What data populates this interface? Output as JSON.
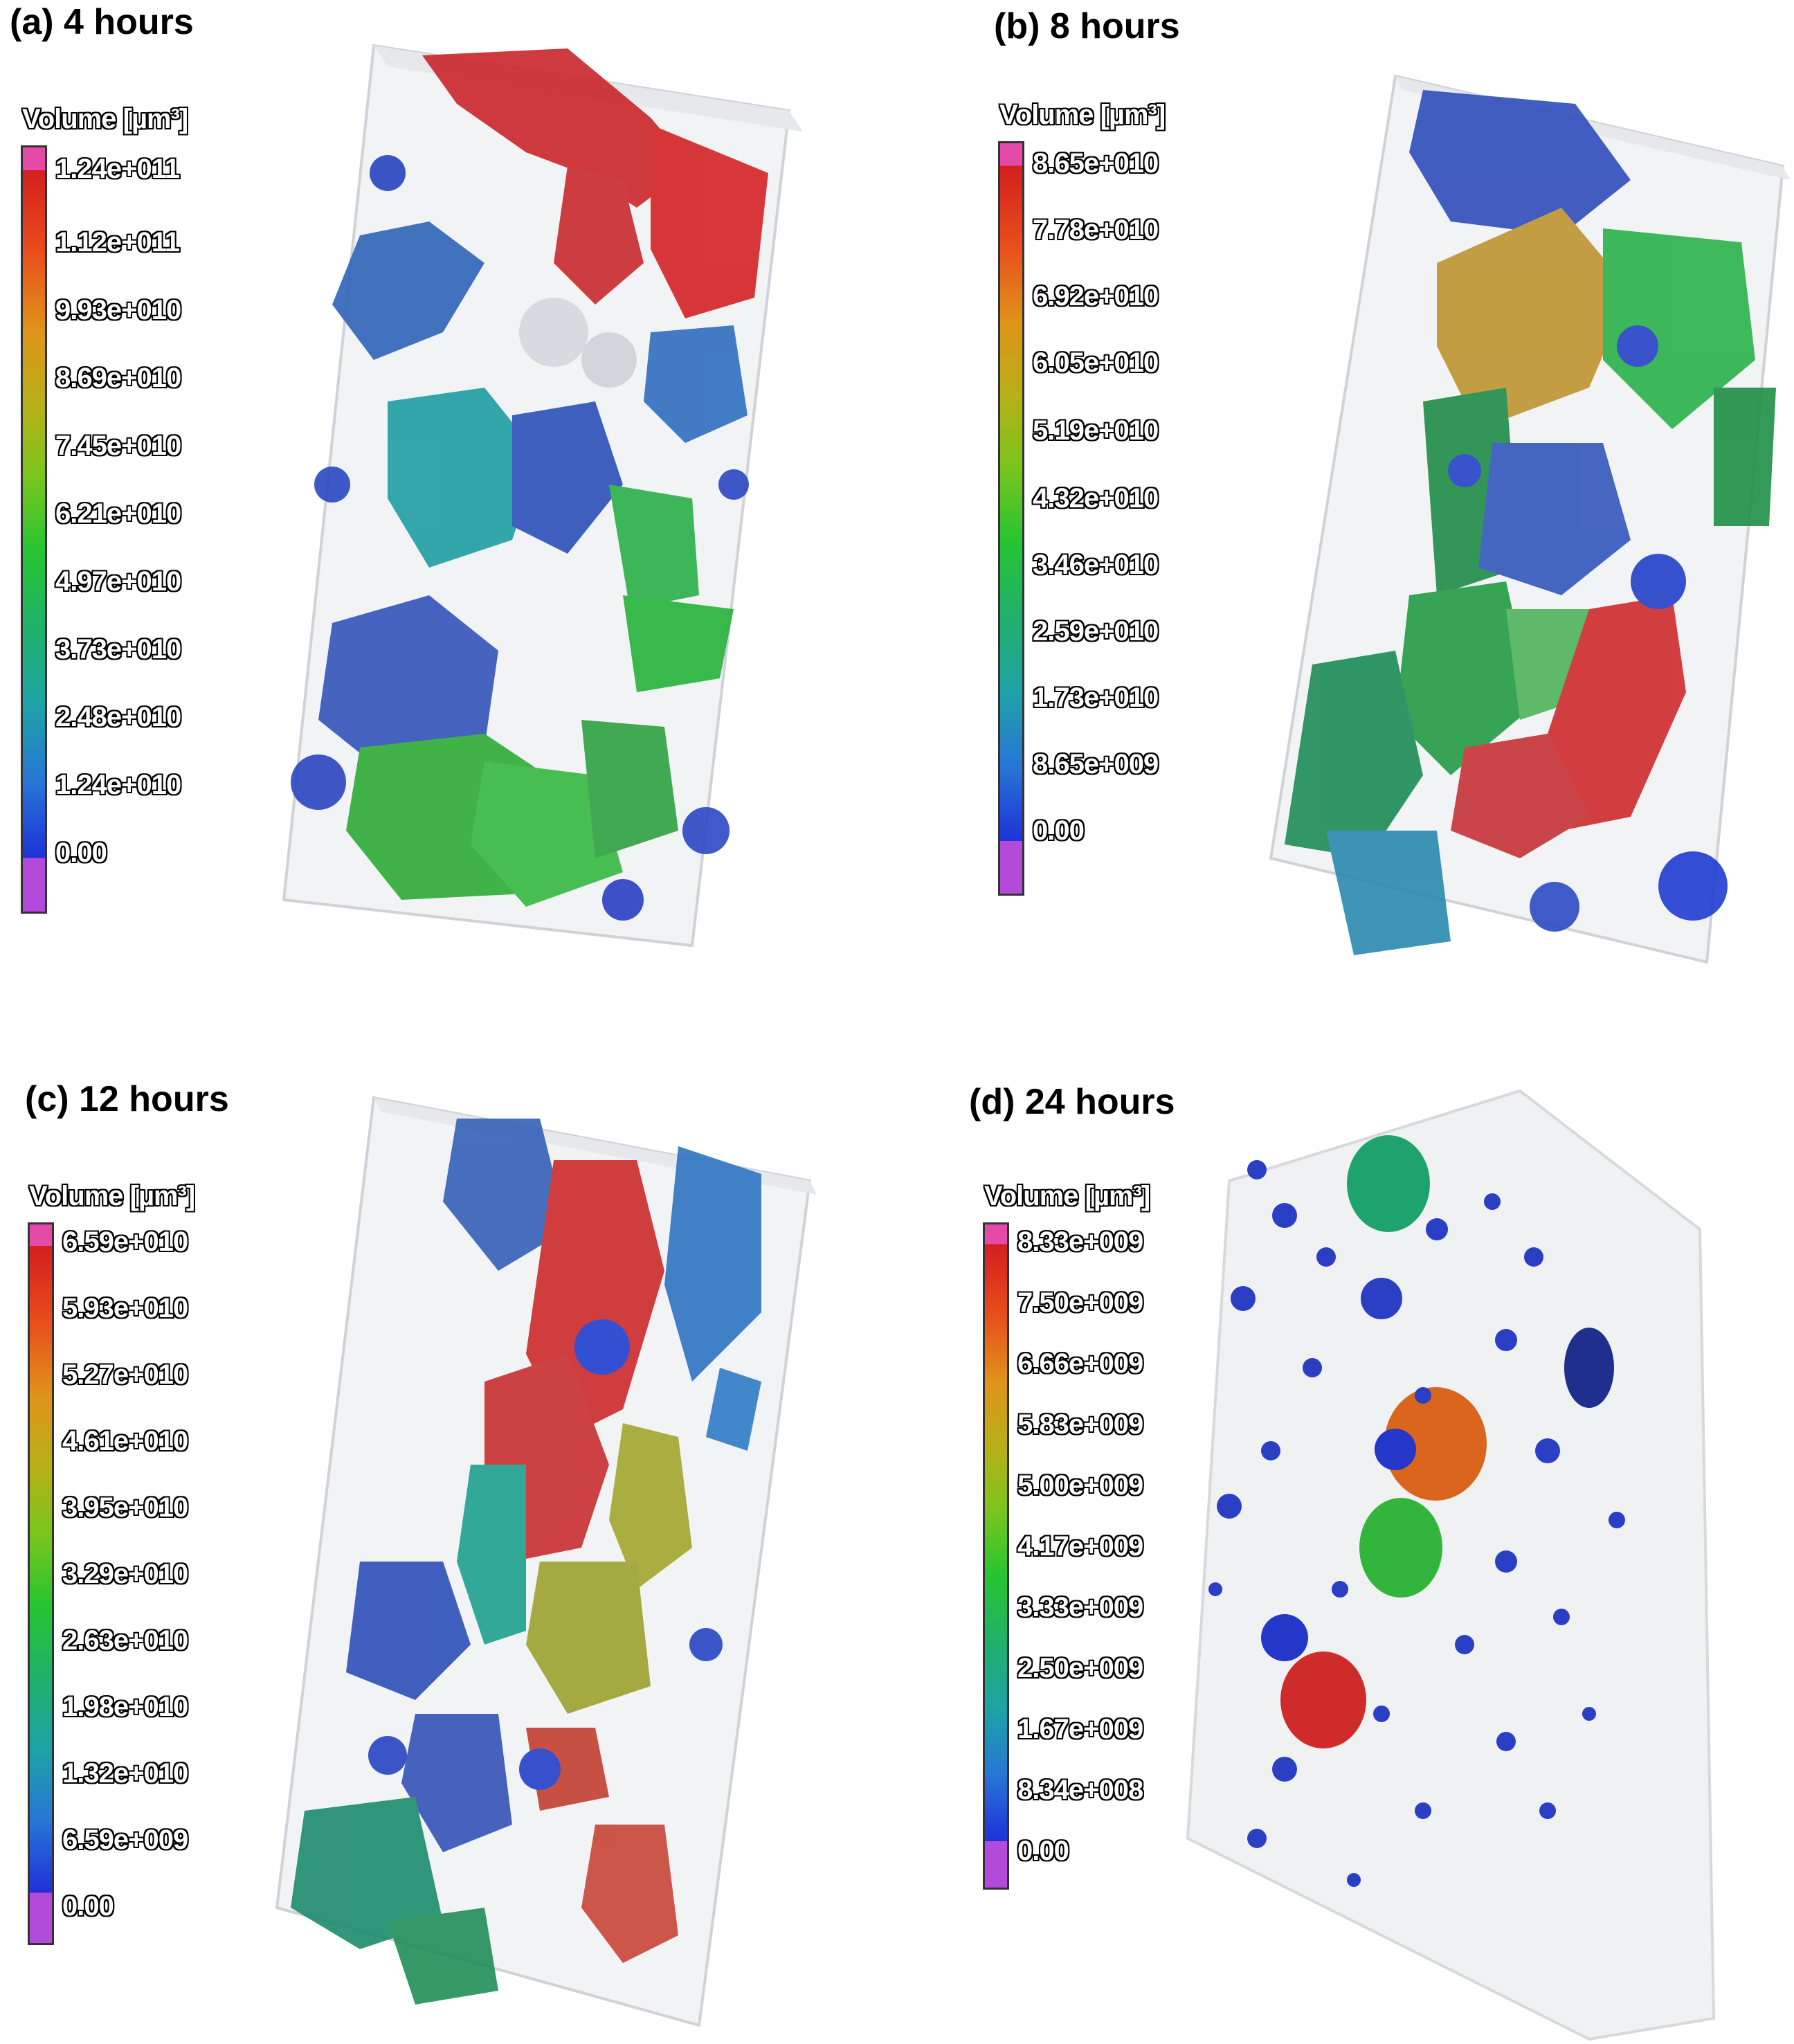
{
  "panels": [
    {
      "id": "a",
      "caption": "(a) 4 hours",
      "legend_title": "Volume [µm³]",
      "ticks": [
        "1.24e+011",
        "1.12e+011",
        "9.93e+010",
        "8.69e+010",
        "7.45e+010",
        "6.21e+010",
        "4.97e+010",
        "3.73e+010",
        "2.48e+010",
        "1.24e+010",
        "0.00"
      ]
    },
    {
      "id": "b",
      "caption": "(b) 8 hours",
      "legend_title": "Volume [µm³]",
      "ticks": [
        "8.65e+010",
        "7.78e+010",
        "6.92e+010",
        "6.05e+010",
        "5.19e+010",
        "4.32e+010",
        "3.46e+010",
        "2.59e+010",
        "1.73e+010",
        "8.65e+009",
        "0.00"
      ]
    },
    {
      "id": "c",
      "caption": "(c) 12 hours",
      "legend_title": "Volume [µm³]",
      "ticks": [
        "6.59e+010",
        "5.93e+010",
        "5.27e+010",
        "4.61e+010",
        "3.95e+010",
        "3.29e+010",
        "2.63e+010",
        "1.98e+010",
        "1.32e+010",
        "6.59e+009",
        "0.00"
      ]
    },
    {
      "id": "d",
      "caption": "(d) 24 hours",
      "legend_title": "Volume [µm³]",
      "ticks": [
        "8.33e+009",
        "7.50e+009",
        "6.66e+009",
        "5.83e+009",
        "5.00e+009",
        "4.17e+009",
        "3.33e+009",
        "2.50e+009",
        "1.67e+009",
        "8.34e+008",
        "0.00"
      ]
    }
  ],
  "colors": {
    "max_cap": "#e64aa8",
    "min_cap": "#b34ad9",
    "red": "#d31e1e",
    "orange": "#e0941a",
    "green": "#26c531",
    "teal": "#1da3a6",
    "blue": "#1f31d8"
  }
}
